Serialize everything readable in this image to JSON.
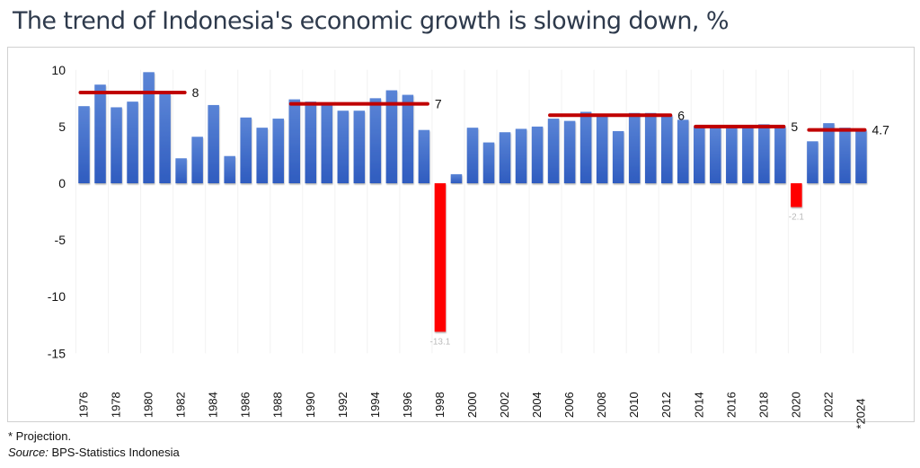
{
  "title": "The trend of Indonesia's economic growth is slowing down, %",
  "footnote": "* Projection.",
  "source_label": "Source:",
  "source_text": "BPS-Statistics Indonesia",
  "colors": {
    "bar_positive": "#3f6cc8",
    "bar_negative": "#ff0000",
    "trend_line": "#c00000",
    "axis_text": "#111111",
    "neg_label": "#bbbbbb"
  },
  "chart_data": {
    "type": "bar",
    "title": "The trend of Indonesia's economic growth is slowing down, %",
    "xlabel": "",
    "ylabel": "",
    "ylim": [
      -15,
      10
    ],
    "yticks": [
      10,
      5,
      0,
      -5,
      -10,
      -15
    ],
    "grid": "vertical-light",
    "categories": [
      "1976",
      "1977",
      "1978",
      "1979",
      "1980",
      "1981",
      "1982",
      "1983",
      "1984",
      "1985",
      "1986",
      "1987",
      "1988",
      "1989",
      "1990",
      "1991",
      "1992",
      "1993",
      "1994",
      "1995",
      "1996",
      "1997",
      "1998",
      "1999",
      "2000",
      "2001",
      "2002",
      "2003",
      "2004",
      "2005",
      "2006",
      "2007",
      "2008",
      "2009",
      "2010",
      "2011",
      "2012",
      "2013",
      "2014",
      "2015",
      "2016",
      "2017",
      "2018",
      "2019",
      "2020",
      "2021",
      "2022",
      "2023",
      "2024"
    ],
    "tick_labels": [
      "1976",
      "1978",
      "1980",
      "1982",
      "1984",
      "1986",
      "1988",
      "1990",
      "1992",
      "1994",
      "1996",
      "1998",
      "2000",
      "2002",
      "2004",
      "2006",
      "2008",
      "2010",
      "2012",
      "2014",
      "2016",
      "2018",
      "2020",
      "2022",
      "*2024"
    ],
    "values": [
      6.8,
      8.7,
      6.7,
      7.2,
      9.8,
      7.9,
      2.2,
      4.1,
      6.9,
      2.4,
      5.8,
      4.9,
      5.7,
      7.4,
      7.2,
      7.0,
      6.4,
      6.4,
      7.5,
      8.2,
      7.8,
      4.7,
      -13.1,
      0.8,
      4.9,
      3.6,
      4.5,
      4.8,
      5.0,
      5.7,
      5.5,
      6.3,
      6.0,
      4.6,
      6.2,
      6.2,
      6.0,
      5.6,
      5.0,
      4.9,
      5.0,
      5.1,
      5.2,
      5.0,
      -2.1,
      3.7,
      5.3,
      4.9,
      4.7
    ],
    "data_labels": [
      {
        "year": "1998",
        "text": "-13.1"
      },
      {
        "year": "2020",
        "text": "-2.1"
      }
    ],
    "trend_lines": [
      {
        "from": "1976",
        "to": "1982",
        "value": 8,
        "label": "8"
      },
      {
        "from": "1989",
        "to": "1997",
        "value": 7,
        "label": "7"
      },
      {
        "from": "2005",
        "to": "2012",
        "value": 6,
        "label": "6"
      },
      {
        "from": "2014",
        "to": "2019",
        "value": 5,
        "label": "5"
      },
      {
        "from": "2021",
        "to": "2024",
        "value": 4.7,
        "label": "4.7"
      }
    ],
    "projection_note": "* Projection."
  }
}
